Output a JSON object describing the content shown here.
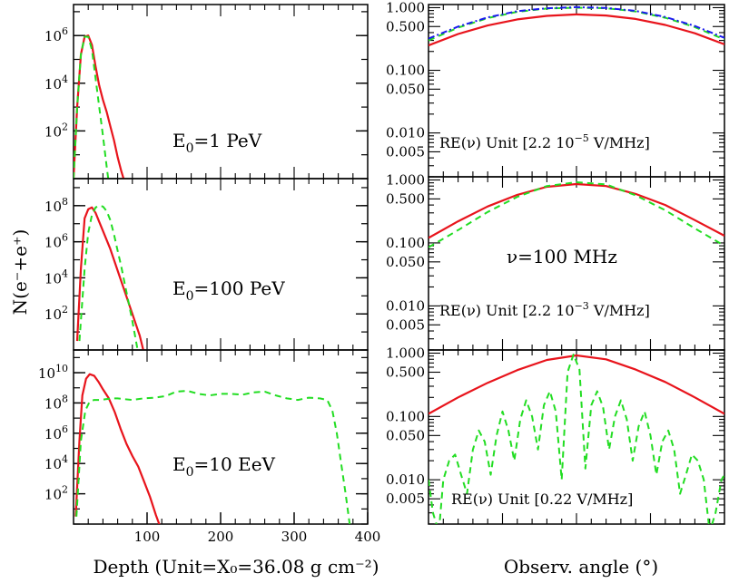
{
  "colors": {
    "red": "#e8141c",
    "green": "#22dd22",
    "blue": "#1a1aee",
    "frame": "#000000"
  },
  "labels": {
    "y_left": "N(e⁻+e⁺)",
    "x_left": "Depth (Unit=X₀=36.08 g cm⁻²)",
    "x_right": "Observ. angle (°)"
  },
  "annotations": {
    "e1": {
      "pre": "E",
      "sub": "0",
      "post": "=1  PeV"
    },
    "e2": {
      "pre": "E",
      "sub": "0",
      "post": "=100 PeV"
    },
    "e3": {
      "pre": "E",
      "sub": "0",
      "post": "=10 EeV"
    },
    "nu": "ν=100 MHz",
    "re1": {
      "pre": "RE(ν) Unit [2.2 10",
      "sup": "−5",
      "post": " V/MHz]"
    },
    "re2": {
      "pre": "RE(ν) Unit [2.2 10",
      "sup": "−3",
      "post": " V/MHz]"
    },
    "re3": "RE(ν) Unit [0.22 V/MHz]"
  },
  "chart_data": [
    {
      "type": "line",
      "panel": "depth-1PeV",
      "xlim": [
        0,
        400
      ],
      "ylim_log10": [
        0,
        7.3
      ],
      "yscale": "log",
      "yticks": [
        {
          "exp": 2
        },
        {
          "exp": 4
        },
        {
          "exp": 6
        }
      ],
      "series": [
        {
          "color": "red",
          "dash": false,
          "x": [
            0,
            5,
            10,
            15,
            20,
            25,
            30,
            35,
            40,
            45,
            50,
            55,
            60,
            65,
            70
          ],
          "y": [
            0,
            3.0,
            5.2,
            5.95,
            6.0,
            5.6,
            4.7,
            3.9,
            3.3,
            2.8,
            2.2,
            1.6,
            0.9,
            0.3,
            -0.2
          ]
        },
        {
          "color": "green",
          "dash": true,
          "x": [
            0,
            5,
            10,
            15,
            20,
            25,
            30,
            35,
            40,
            45,
            48
          ],
          "y": [
            0,
            3.0,
            5.2,
            5.95,
            5.95,
            5.4,
            4.2,
            3.0,
            1.8,
            0.5,
            -0.2
          ]
        }
      ]
    },
    {
      "type": "line",
      "panel": "depth-100PeV",
      "xlim": [
        0,
        400
      ],
      "ylim_log10": [
        0,
        9.5
      ],
      "yscale": "log",
      "yticks": [
        {
          "exp": 2
        },
        {
          "exp": 4
        },
        {
          "exp": 6
        },
        {
          "exp": 8
        }
      ],
      "series": [
        {
          "color": "red",
          "dash": false,
          "x": [
            5,
            10,
            15,
            20,
            25,
            30,
            35,
            40,
            50,
            60,
            70,
            80,
            90,
            96
          ],
          "y": [
            0.5,
            4.5,
            7.3,
            7.8,
            7.9,
            7.6,
            7.1,
            6.6,
            5.6,
            4.4,
            3.2,
            2.0,
            0.8,
            -0.2
          ]
        },
        {
          "color": "green",
          "dash": true,
          "x": [
            8,
            15,
            20,
            25,
            30,
            35,
            40,
            45,
            50,
            55,
            60,
            65,
            70,
            75,
            80,
            85,
            88
          ],
          "y": [
            0.5,
            4.5,
            6.5,
            7.5,
            7.9,
            8.0,
            7.95,
            7.7,
            7.2,
            6.4,
            5.5,
            4.6,
            3.6,
            2.6,
            1.6,
            0.5,
            -0.2
          ]
        }
      ]
    },
    {
      "type": "line",
      "panel": "depth-10EeV",
      "xlim": [
        0,
        400
      ],
      "ylim_log10": [
        0,
        11.5
      ],
      "yscale": "log",
      "xticks": [
        100,
        200,
        300,
        400
      ],
      "yticks": [
        {
          "exp": 2
        },
        {
          "exp": 4
        },
        {
          "exp": 6
        },
        {
          "exp": 8
        },
        {
          "exp": 10
        }
      ],
      "series": [
        {
          "color": "red",
          "dash": false,
          "x": [
            3,
            8,
            12,
            17,
            22,
            28,
            34,
            40,
            48,
            56,
            64,
            72,
            80,
            88,
            96,
            104,
            112,
            118
          ],
          "y": [
            0.5,
            5.5,
            8.5,
            9.6,
            9.9,
            9.8,
            9.4,
            8.9,
            8.3,
            7.4,
            6.3,
            5.3,
            4.5,
            3.8,
            2.8,
            1.8,
            0.6,
            -0.2
          ]
        },
        {
          "color": "green",
          "dash": true,
          "x": [
            4,
            10,
            16,
            22,
            28,
            36,
            44,
            52,
            60,
            70,
            80,
            95,
            110,
            125,
            140,
            155,
            170,
            185,
            200,
            215,
            230,
            245,
            260,
            275,
            290,
            305,
            320,
            335,
            345,
            352,
            358,
            364,
            370,
            376
          ],
          "y": [
            0.5,
            5.5,
            7.5,
            8.1,
            8.2,
            8.2,
            8.25,
            8.3,
            8.3,
            8.25,
            8.2,
            8.3,
            8.35,
            8.45,
            8.75,
            8.8,
            8.6,
            8.5,
            8.6,
            8.6,
            8.55,
            8.7,
            8.75,
            8.5,
            8.3,
            8.2,
            8.35,
            8.3,
            8.2,
            7.5,
            6.0,
            4.0,
            2.0,
            -0.2
          ]
        }
      ]
    },
    {
      "type": "line",
      "panel": "radio-1PeV",
      "xlim": [
        -1,
        1
      ],
      "ylim_log10": [
        -2.7,
        0.05
      ],
      "yscale": "log",
      "yticks": [
        0.005,
        0.01,
        0.05,
        0.1,
        0.5,
        1.0
      ],
      "ytick_labels": [
        "0.005",
        "0.010",
        "0.050",
        "0.100",
        "0.500",
        "1.000"
      ],
      "series": [
        {
          "color": "red",
          "dash": false,
          "x": [
            -1,
            -0.8,
            -0.6,
            -0.4,
            -0.2,
            0,
            0.2,
            0.4,
            0.6,
            0.8,
            1
          ],
          "y": [
            0.25,
            0.38,
            0.52,
            0.65,
            0.74,
            0.78,
            0.75,
            0.66,
            0.53,
            0.39,
            0.26
          ]
        },
        {
          "color": "green",
          "dash": true,
          "x": [
            -1,
            -0.8,
            -0.6,
            -0.4,
            -0.2,
            0,
            0.2,
            0.4,
            0.6,
            0.8,
            1
          ],
          "y": [
            0.3,
            0.48,
            0.68,
            0.86,
            0.97,
            1.0,
            0.98,
            0.87,
            0.69,
            0.49,
            0.31
          ]
        },
        {
          "color": "blue",
          "dash": true,
          "x": [
            -1,
            -0.8,
            -0.6,
            -0.4,
            -0.2,
            0,
            0.2,
            0.4,
            0.6,
            0.8,
            1
          ],
          "y": [
            0.32,
            0.5,
            0.7,
            0.88,
            0.98,
            1.02,
            0.99,
            0.89,
            0.71,
            0.51,
            0.33
          ]
        }
      ]
    },
    {
      "type": "line",
      "panel": "radio-100PeV",
      "xlim": [
        -1,
        1
      ],
      "ylim_log10": [
        -2.7,
        0.05
      ],
      "yscale": "log",
      "yticks": [
        0.005,
        0.01,
        0.05,
        0.1,
        0.5,
        1.0
      ],
      "ytick_labels": [
        "0.005",
        "0.010",
        "0.050",
        "0.100",
        "0.500",
        "1.000"
      ],
      "series": [
        {
          "color": "red",
          "dash": false,
          "x": [
            -1,
            -0.8,
            -0.6,
            -0.4,
            -0.2,
            0,
            0.2,
            0.4,
            0.6,
            0.8,
            1
          ],
          "y": [
            0.12,
            0.22,
            0.38,
            0.58,
            0.78,
            0.86,
            0.8,
            0.6,
            0.4,
            0.23,
            0.13
          ]
        },
        {
          "color": "green",
          "dash": true,
          "x": [
            -1,
            -0.8,
            -0.6,
            -0.4,
            -0.2,
            0,
            0.2,
            0.4,
            0.6,
            0.8,
            1
          ],
          "y": [
            0.085,
            0.16,
            0.31,
            0.54,
            0.8,
            0.92,
            0.85,
            0.57,
            0.33,
            0.17,
            0.09
          ]
        }
      ]
    },
    {
      "type": "line",
      "panel": "radio-10EeV",
      "xlim": [
        -1,
        1
      ],
      "ylim_log10": [
        -2.7,
        0.05
      ],
      "yscale": "log",
      "yticks": [
        0.005,
        0.01,
        0.05,
        0.1,
        0.5,
        1.0
      ],
      "ytick_labels": [
        "0.005",
        "0.010",
        "0.050",
        "0.100",
        "0.500",
        "1.000"
      ],
      "series": [
        {
          "color": "red",
          "dash": false,
          "x": [
            -1,
            -0.8,
            -0.6,
            -0.4,
            -0.2,
            0,
            0.2,
            0.4,
            0.6,
            0.8,
            1
          ],
          "y": [
            0.11,
            0.2,
            0.34,
            0.54,
            0.78,
            0.92,
            0.8,
            0.55,
            0.35,
            0.2,
            0.11
          ]
        },
        {
          "color": "green",
          "dash": true,
          "x": [
            -1,
            -0.97,
            -0.93,
            -0.9,
            -0.86,
            -0.82,
            -0.78,
            -0.74,
            -0.7,
            -0.66,
            -0.62,
            -0.58,
            -0.54,
            -0.5,
            -0.46,
            -0.42,
            -0.38,
            -0.34,
            -0.3,
            -0.26,
            -0.22,
            -0.18,
            -0.14,
            -0.1,
            -0.06,
            -0.02,
            0.02,
            0.06,
            0.1,
            0.14,
            0.18,
            0.22,
            0.26,
            0.3,
            0.34,
            0.38,
            0.42,
            0.46,
            0.5,
            0.54,
            0.58,
            0.62,
            0.66,
            0.7,
            0.74,
            0.78,
            0.82,
            0.86,
            0.9,
            0.94,
            0.98,
            1
          ],
          "y": [
            0.01,
            0.003,
            0.0015,
            0.01,
            0.02,
            0.025,
            0.012,
            0.006,
            0.03,
            0.06,
            0.04,
            0.012,
            0.05,
            0.12,
            0.06,
            0.02,
            0.09,
            0.18,
            0.1,
            0.03,
            0.15,
            0.25,
            0.12,
            0.01,
            0.5,
            0.95,
            0.55,
            0.015,
            0.15,
            0.25,
            0.14,
            0.03,
            0.1,
            0.18,
            0.09,
            0.02,
            0.07,
            0.12,
            0.05,
            0.012,
            0.04,
            0.06,
            0.03,
            0.006,
            0.012,
            0.025,
            0.02,
            0.01,
            0.0015,
            0.003,
            0.01,
            0.012
          ]
        }
      ]
    }
  ]
}
